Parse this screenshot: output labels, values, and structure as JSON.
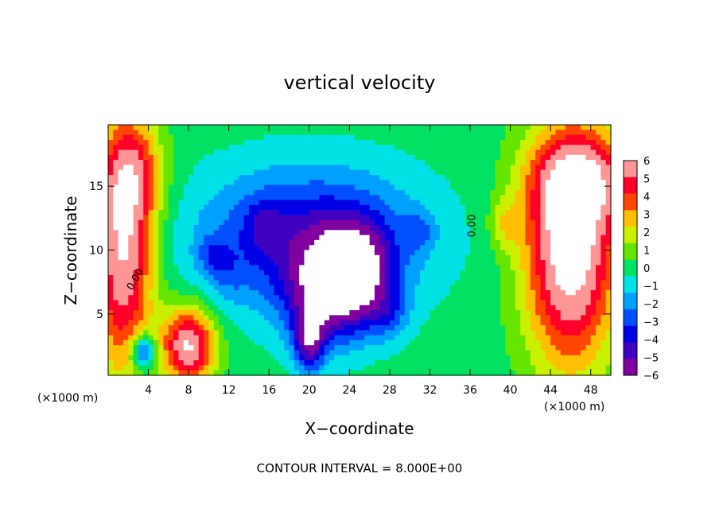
{
  "chart_data": {
    "type": "heatmap",
    "title": "vertical velocity",
    "xlabel": "X−coordinate",
    "ylabel": "Z−coordinate",
    "x_unit": "(×1000 m)",
    "x_unit_right": "(×1000 m)",
    "xlim": [
      0,
      50
    ],
    "ylim": [
      0.2,
      19.8
    ],
    "x_ticks": [
      "4",
      "8",
      "12",
      "16",
      "20",
      "24",
      "28",
      "32",
      "36",
      "40",
      "44",
      "48"
    ],
    "y_ticks": [
      "5",
      "10",
      "15"
    ],
    "colorbar": {
      "ticks": [
        "6",
        "5",
        "4",
        "3",
        "2",
        "1",
        "0",
        "−1",
        "−2",
        "−3",
        "−4",
        "−5",
        "−6"
      ],
      "range": [
        -6,
        6
      ]
    },
    "contour_labels": [
      "0.00",
      "0.00"
    ],
    "footer": "CONTOUR INTERVAL = 8.000E+00",
    "blobs": [
      {
        "cx": 1.5,
        "cz": 10.0,
        "rx": 3.0,
        "rz": 9.5,
        "amp": 7
      },
      {
        "cx": 2.6,
        "cz": 16.0,
        "rx": 3.0,
        "rz": 4.0,
        "amp": 3
      },
      {
        "cx": 8.0,
        "cz": 2.5,
        "rx": 2.6,
        "rz": 3.0,
        "amp": 7
      },
      {
        "cx": 46.0,
        "cz": 10.0,
        "rx": 4.5,
        "rz": 9.0,
        "amp": 8
      },
      {
        "cx": 47.5,
        "cz": 15.5,
        "rx": 5.5,
        "rz": 3.6,
        "amp": 4
      },
      {
        "cx": 39.5,
        "cz": 12.0,
        "rx": 1.5,
        "rz": 2.0,
        "amp": 2
      },
      {
        "cx": 20.0,
        "cz": 11.0,
        "rx": 11.0,
        "rz": 5.5,
        "amp": -4.5
      },
      {
        "cx": 22.0,
        "cz": 6.5,
        "rx": 4.5,
        "rz": 4.0,
        "amp": -5
      },
      {
        "cx": 24.5,
        "cz": 8.5,
        "rx": 3.5,
        "rz": 3.5,
        "amp": -5
      },
      {
        "cx": 20.0,
        "cz": 3.0,
        "rx": 1.5,
        "rz": 2.5,
        "amp": -5
      },
      {
        "cx": 10.5,
        "cz": 9.5,
        "rx": 1.5,
        "rz": 1.5,
        "amp": -2
      },
      {
        "cx": 15.5,
        "cz": 12.0,
        "rx": 2.0,
        "rz": 2.0,
        "amp": -1.5
      },
      {
        "cx": 31.0,
        "cz": 11.5,
        "rx": 1.5,
        "rz": 1.5,
        "amp": -1.5
      },
      {
        "cx": 3.5,
        "cz": 2.0,
        "rx": 1.2,
        "rz": 1.4,
        "amp": -5
      },
      {
        "cx": 12.0,
        "cz": 8.0,
        "rx": 2.0,
        "rz": 2.0,
        "amp": -1
      },
      {
        "cx": 28.0,
        "cz": 5.0,
        "rx": 2.0,
        "rz": 2.0,
        "amp": -2
      }
    ]
  }
}
